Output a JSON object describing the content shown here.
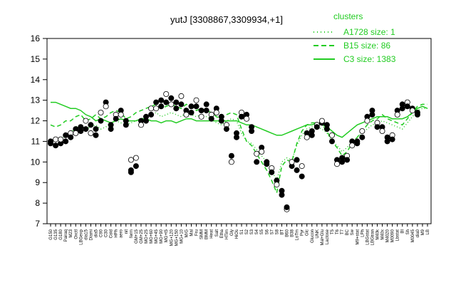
{
  "chart_data": {
    "type": "line",
    "title": "yutJ [3308867,3309934,+1]",
    "xlabel": "",
    "ylabel": "",
    "ylim": [
      7,
      16
    ],
    "yticks": [
      7,
      8,
      9,
      10,
      11,
      12,
      13,
      14,
      15,
      16
    ],
    "grid": false,
    "legend": {
      "title": "clusters",
      "placement": "top-right",
      "entries": [
        {
          "label": "A1728 size: 1",
          "style": "dotted"
        },
        {
          "label": "B15 size: 86",
          "style": "dashed"
        },
        {
          "label": "C3 size: 1383",
          "style": "solid"
        }
      ]
    },
    "colors": {
      "series": "#22cc22",
      "points": "#000000"
    },
    "x_tick_labels": [
      "G150",
      "G135",
      "G180",
      "Pairaq",
      "M23",
      "Oxctl",
      "LBGexp",
      "dia15",
      "Diami",
      "dia5",
      "C90",
      "C30",
      "Cold",
      "HPh",
      "aero",
      "nit",
      "ferm",
      "GM+15",
      "GM+25",
      "MG+25",
      "MG+60",
      "MG+45",
      "MG+90",
      "MG+t5",
      "MG+120",
      "MG+150",
      "MG+10",
      "M/G",
      "Mal",
      "Fru",
      "SMM",
      "BMM",
      "Heat",
      "Salt",
      "Etha",
      "HTim",
      "Gly",
      "HiOs",
      "S1",
      "S2",
      "S3",
      "S4",
      "S5",
      "S6",
      "S7",
      "S8",
      "BT",
      "B60",
      "B38",
      "LoTm",
      "Pyr",
      "Glc",
      "Glucon",
      "UNK",
      "Mal+Glu",
      "Lactose",
      "T5",
      "T6",
      "T7",
      "BC",
      "Sw",
      "M9+stat",
      "LPh",
      "LBGstat",
      "LBGtran",
      "M40k",
      "M40x",
      "M4020",
      "M0090",
      "Lbstat",
      "BI",
      "Sh",
      "M0045",
      "dia0",
      "M9",
      "LB"
    ],
    "series": [
      {
        "name": "A1728 size: 1",
        "style": "dotted",
        "values": [
          11.1,
          11.0,
          11.1,
          11.3,
          11.4,
          11.7,
          11.8,
          11.6,
          11.7,
          11.8,
          11.6,
          11.7,
          11.9,
          12.0,
          11.9,
          11.8,
          11.9,
          12.0,
          12.1,
          12.2,
          12.3,
          12.4,
          12.2,
          12.3,
          12.4,
          12.3,
          12.2,
          12.4,
          12.3,
          12.2,
          12.3,
          12.2,
          12.1,
          11.9,
          11.8,
          12.0,
          12.1,
          12.0,
          11.4,
          11.0,
          10.9,
          10.6,
          10.3,
          10.0,
          9.6,
          9.1,
          10.0,
          10.2,
          10.1,
          10.8,
          11.3,
          11.6,
          11.7,
          11.7,
          11.6,
          11.4,
          11.0,
          10.8,
          10.5,
          10.7,
          11.0,
          11.2,
          11.4,
          11.6,
          11.8,
          11.9,
          12.0,
          11.9,
          11.8,
          11.7,
          11.6,
          11.9,
          12.2,
          12.5,
          12.6,
          12.6
        ]
      },
      {
        "name": "B15 size: 86",
        "style": "dashed",
        "values": [
          11.8,
          11.7,
          11.8,
          12.0,
          12.0,
          12.2,
          12.3,
          12.0,
          12.1,
          12.3,
          12.1,
          12.2,
          12.4,
          12.5,
          12.4,
          12.1,
          12.2,
          12.4,
          12.5,
          12.6,
          12.7,
          12.8,
          12.6,
          12.7,
          12.8,
          12.7,
          12.6,
          12.8,
          12.7,
          12.5,
          12.6,
          12.5,
          12.4,
          12.2,
          12.1,
          12.3,
          12.4,
          12.3,
          11.6,
          11.0,
          10.8,
          10.4,
          10.0,
          9.6,
          9.1,
          8.5,
          9.8,
          10.1,
          10.0,
          10.9,
          11.5,
          11.8,
          11.9,
          11.9,
          11.8,
          11.5,
          11.0,
          10.7,
          10.3,
          10.5,
          10.9,
          11.2,
          11.5,
          11.8,
          12.0,
          12.1,
          12.3,
          12.1,
          12.0,
          11.9,
          11.8,
          12.1,
          12.4,
          12.7,
          12.8,
          12.8
        ]
      },
      {
        "name": "C3 size: 1383",
        "style": "solid",
        "values": [
          12.9,
          12.9,
          12.8,
          12.7,
          12.6,
          12.6,
          12.5,
          12.3,
          12.2,
          12.0,
          12.1,
          12.0,
          11.9,
          12.0,
          12.1,
          12.0,
          12.0,
          12.0,
          12.1,
          12.1,
          12.0,
          12.0,
          11.9,
          12.0,
          12.0,
          11.9,
          12.0,
          12.1,
          12.1,
          12.0,
          12.0,
          12.0,
          12.0,
          12.0,
          12.0,
          12.0,
          12.0,
          12.0,
          11.9,
          11.8,
          11.8,
          11.7,
          11.6,
          11.5,
          11.4,
          11.3,
          11.3,
          11.4,
          11.5,
          11.6,
          11.7,
          11.8,
          11.8,
          11.9,
          11.8,
          11.7,
          11.5,
          11.3,
          11.2,
          11.4,
          11.6,
          11.8,
          11.9,
          12.0,
          12.1,
          12.2,
          12.2,
          12.2,
          12.1,
          12.1,
          12.1,
          12.2,
          12.4,
          12.6,
          12.7,
          12.6
        ]
      }
    ],
    "points": [
      [
        0,
        11.0
      ],
      [
        0,
        10.9
      ],
      [
        1,
        11.1
      ],
      [
        1,
        10.8
      ],
      [
        2,
        10.9
      ],
      [
        2,
        11.1
      ],
      [
        3,
        11.0
      ],
      [
        3,
        11.3
      ],
      [
        4,
        11.4
      ],
      [
        4,
        11.2
      ],
      [
        5,
        11.6
      ],
      [
        5,
        11.4
      ],
      [
        6,
        11.7
      ],
      [
        6,
        11.5
      ],
      [
        7,
        12.0
      ],
      [
        7,
        11.6
      ],
      [
        8,
        11.8
      ],
      [
        8,
        11.4
      ],
      [
        9,
        11.6
      ],
      [
        9,
        11.3
      ],
      [
        10,
        12.4
      ],
      [
        10,
        12.0
      ],
      [
        11,
        12.9
      ],
      [
        11,
        12.7
      ],
      [
        12,
        11.8
      ],
      [
        12,
        11.6
      ],
      [
        13,
        12.3
      ],
      [
        13,
        12.1
      ],
      [
        14,
        12.5
      ],
      [
        14,
        12.3
      ],
      [
        15,
        12.0
      ],
      [
        15,
        11.8
      ],
      [
        16,
        10.1
      ],
      [
        16,
        9.6
      ],
      [
        16,
        9.5
      ],
      [
        17,
        10.2
      ],
      [
        17,
        9.8
      ],
      [
        18,
        12.0
      ],
      [
        18,
        11.8
      ],
      [
        19,
        12.2
      ],
      [
        19,
        12.0
      ],
      [
        20,
        12.6
      ],
      [
        20,
        12.3
      ],
      [
        21,
        12.9
      ],
      [
        21,
        12.6
      ],
      [
        22,
        13.0
      ],
      [
        22,
        12.7
      ],
      [
        23,
        13.3
      ],
      [
        23,
        12.9
      ],
      [
        24,
        13.1
      ],
      [
        24,
        12.8
      ],
      [
        25,
        12.9
      ],
      [
        25,
        12.6
      ],
      [
        26,
        13.2
      ],
      [
        26,
        12.8
      ],
      [
        27,
        12.5
      ],
      [
        27,
        12.3
      ],
      [
        28,
        12.7
      ],
      [
        28,
        12.4
      ],
      [
        29,
        13.0
      ],
      [
        29,
        12.7
      ],
      [
        30,
        12.5
      ],
      [
        30,
        12.2
      ],
      [
        31,
        12.8
      ],
      [
        31,
        12.5
      ],
      [
        32,
        12.3
      ],
      [
        32,
        12.1
      ],
      [
        33,
        12.6
      ],
      [
        33,
        12.4
      ],
      [
        34,
        12.2
      ],
      [
        34,
        12.0
      ],
      [
        35,
        11.8
      ],
      [
        35,
        11.6
      ],
      [
        36,
        10.3
      ],
      [
        36,
        10.0
      ],
      [
        37,
        11.2
      ],
      [
        37,
        11.4
      ],
      [
        38,
        12.4
      ],
      [
        38,
        12.2
      ],
      [
        39,
        12.3
      ],
      [
        39,
        12.1
      ],
      [
        40,
        11.5
      ],
      [
        40,
        11.7
      ],
      [
        41,
        10.4
      ],
      [
        41,
        10.0
      ],
      [
        42,
        10.7
      ],
      [
        42,
        10.5
      ],
      [
        43,
        10.0
      ],
      [
        43,
        9.9
      ],
      [
        44,
        9.7
      ],
      [
        44,
        9.5
      ],
      [
        45,
        9.1
      ],
      [
        45,
        8.9
      ],
      [
        46,
        8.6
      ],
      [
        46,
        8.4
      ],
      [
        47,
        7.7
      ],
      [
        47,
        7.8
      ],
      [
        48,
        9.8
      ],
      [
        48,
        10.0
      ],
      [
        49,
        10.1
      ],
      [
        49,
        9.6
      ],
      [
        50,
        9.8
      ],
      [
        50,
        9.3
      ],
      [
        51,
        11.4
      ],
      [
        51,
        11.2
      ],
      [
        52,
        11.5
      ],
      [
        52,
        11.3
      ],
      [
        53,
        11.8
      ],
      [
        53,
        11.7
      ],
      [
        54,
        11.9
      ],
      [
        54,
        12.0
      ],
      [
        55,
        11.8
      ],
      [
        55,
        11.6
      ],
      [
        56,
        11.3
      ],
      [
        56,
        11.0
      ],
      [
        57,
        10.1
      ],
      [
        57,
        9.9
      ],
      [
        58,
        10.0
      ],
      [
        58,
        10.2
      ],
      [
        59,
        10.3
      ],
      [
        59,
        10.1
      ],
      [
        60,
        11.0
      ],
      [
        60,
        10.8
      ],
      [
        61,
        11.0
      ],
      [
        61,
        10.9
      ],
      [
        62,
        11.5
      ],
      [
        62,
        11.2
      ],
      [
        63,
        12.2
      ],
      [
        63,
        12.0
      ],
      [
        64,
        12.5
      ],
      [
        64,
        12.3
      ],
      [
        65,
        11.9
      ],
      [
        65,
        11.7
      ],
      [
        66,
        11.7
      ],
      [
        66,
        11.5
      ],
      [
        67,
        11.2
      ],
      [
        67,
        11.0
      ],
      [
        68,
        11.3
      ],
      [
        68,
        11.1
      ],
      [
        69,
        12.5
      ],
      [
        69,
        12.3
      ],
      [
        70,
        12.8
      ],
      [
        70,
        12.6
      ],
      [
        71,
        12.9
      ],
      [
        71,
        12.7
      ],
      [
        72,
        12.6
      ],
      [
        72,
        12.5
      ],
      [
        73,
        12.4
      ],
      [
        73,
        12.3
      ]
    ]
  }
}
